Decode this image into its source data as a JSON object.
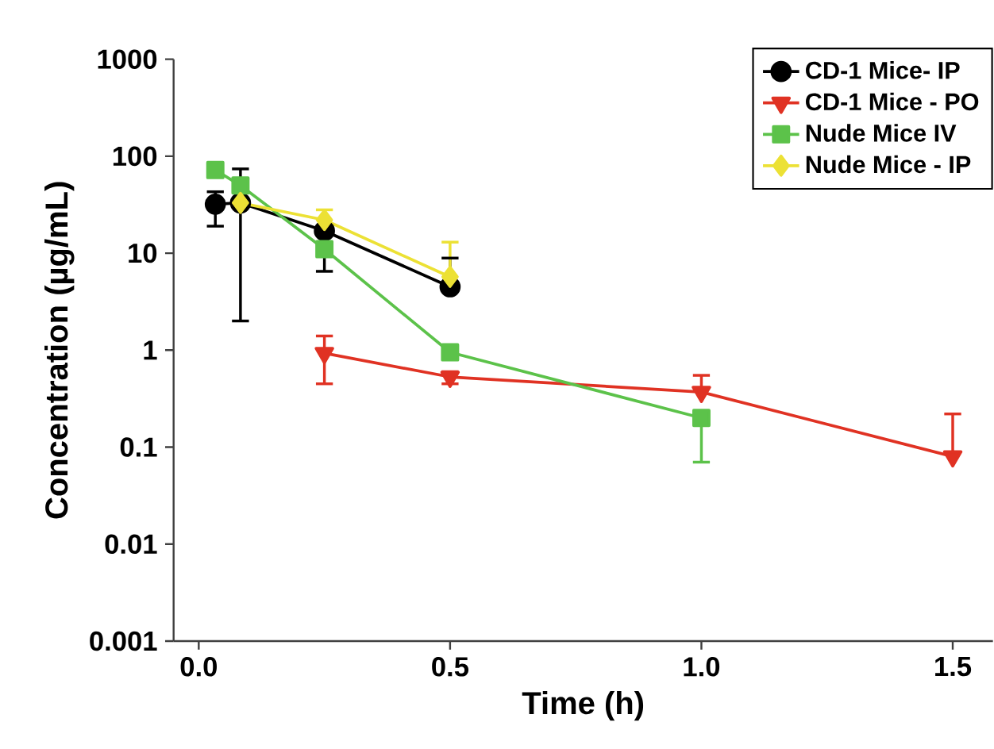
{
  "chart_data": {
    "type": "line",
    "xlabel": "Time (h)",
    "ylabel": "Concentration (µg/mL)",
    "log": "y",
    "grid": false,
    "legend": "top right",
    "xlim": [
      -0.05,
      1.58
    ],
    "xticks": [
      {
        "value": 0,
        "label": "0.0"
      },
      0.5,
      {
        "value": 1,
        "label": "1.0"
      },
      1.5
    ],
    "ylim": [
      0.001,
      1000
    ],
    "yticks": [
      0.001,
      0.01,
      0.1,
      1,
      10,
      100,
      1000
    ],
    "series": [
      {
        "name": "CD-1 Mice- IP",
        "color": "#000000",
        "marker": "circle",
        "x": [
          0.033,
          0.083,
          0.25,
          0.5
        ],
        "values": [
          32,
          33,
          17,
          4.5
        ],
        "errors": [
          [
            19,
            43
          ],
          [
            2,
            74
          ],
          [
            6.5,
            17
          ],
          [
            4.5,
            8.9
          ]
        ]
      },
      {
        "name": "CD-1 Mice - PO",
        "color": "#e03223",
        "marker": "triangle",
        "x": [
          0.25,
          0.5,
          1.0,
          1.5
        ],
        "values": [
          0.93,
          0.53,
          0.37,
          0.08
        ],
        "errors": [
          [
            0.45,
            1.4
          ],
          [
            0.45,
            0.6
          ],
          [
            0.37,
            0.55
          ],
          [
            0.08,
            0.22
          ]
        ]
      },
      {
        "name": "Nude Mice IV",
        "color": "#5cc24a",
        "marker": "square",
        "x": [
          0.033,
          0.083,
          0.25,
          0.5,
          1.0
        ],
        "values": [
          72,
          50,
          11,
          0.95,
          0.2
        ],
        "errors": [
          null,
          null,
          null,
          null,
          [
            0.07,
            0.2
          ]
        ]
      },
      {
        "name": "Nude Mice - IP",
        "color": "#ece135",
        "marker": "diamond",
        "x": [
          0.083,
          0.25,
          0.5
        ],
        "values": [
          33,
          22,
          5.7
        ],
        "errors": [
          null,
          [
            22,
            28
          ],
          [
            5.7,
            13
          ]
        ]
      }
    ]
  }
}
